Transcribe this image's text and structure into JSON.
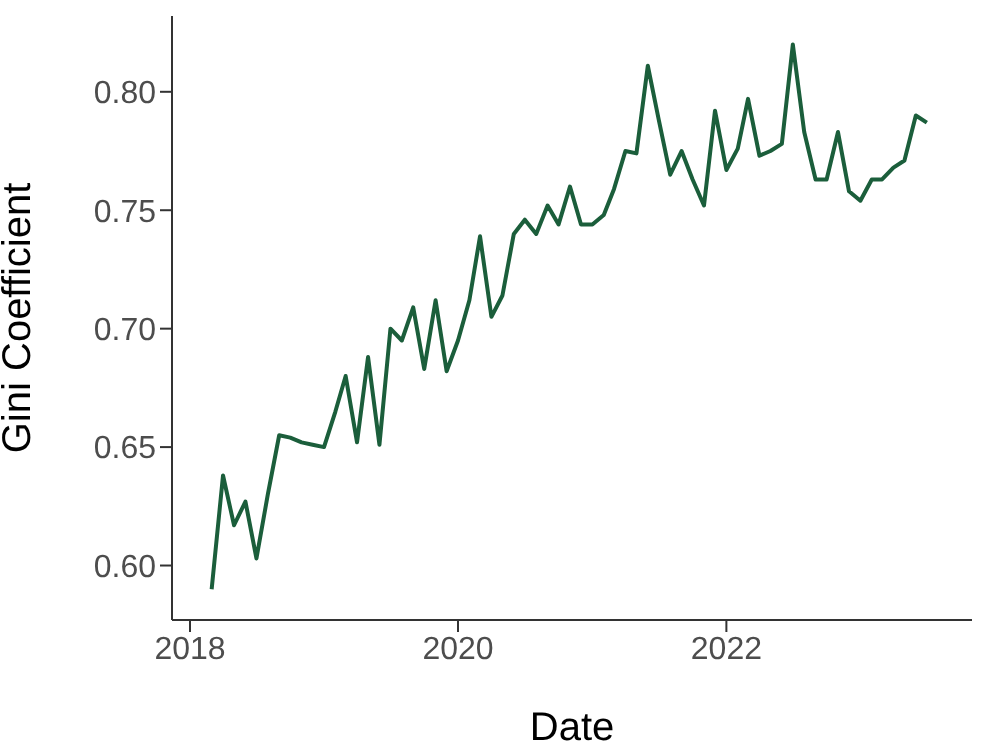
{
  "chart_data": {
    "type": "line",
    "xlabel": "Date",
    "ylabel": "Gini Coefficient",
    "x": [
      "2018-03",
      "2018-04",
      "2018-05",
      "2018-06",
      "2018-07",
      "2018-08",
      "2018-09",
      "2018-10",
      "2018-11",
      "2018-12",
      "2019-01",
      "2019-02",
      "2019-03",
      "2019-04",
      "2019-05",
      "2019-06",
      "2019-07",
      "2019-08",
      "2019-09",
      "2019-10",
      "2019-11",
      "2019-12",
      "2020-01",
      "2020-02",
      "2020-03",
      "2020-04",
      "2020-05",
      "2020-06",
      "2020-07",
      "2020-08",
      "2020-09",
      "2020-10",
      "2020-11",
      "2020-12",
      "2021-01",
      "2021-02",
      "2021-03",
      "2021-04",
      "2021-05",
      "2021-06",
      "2021-07",
      "2021-08",
      "2021-09",
      "2021-10",
      "2021-11",
      "2021-12",
      "2022-01",
      "2022-02",
      "2022-03",
      "2022-04",
      "2022-05",
      "2022-06",
      "2022-07",
      "2022-08",
      "2022-09",
      "2022-10",
      "2022-11",
      "2022-12",
      "2023-01",
      "2023-02",
      "2023-03",
      "2023-04",
      "2023-05",
      "2023-06",
      "2023-07"
    ],
    "series": [
      {
        "color": "#1b5e3b",
        "values": [
          0.59,
          0.638,
          0.617,
          0.627,
          0.603,
          0.63,
          0.655,
          0.654,
          0.652,
          0.651,
          0.65,
          0.665,
          0.68,
          0.652,
          0.688,
          0.651,
          0.7,
          0.695,
          0.709,
          0.683,
          0.712,
          0.682,
          0.695,
          0.712,
          0.739,
          0.705,
          0.714,
          0.74,
          0.746,
          0.74,
          0.752,
          0.744,
          0.76,
          0.744,
          0.744,
          0.748,
          0.759,
          0.775,
          0.774,
          0.811,
          0.788,
          0.765,
          0.775,
          0.763,
          0.752,
          0.792,
          0.767,
          0.776,
          0.797,
          0.773,
          0.775,
          0.778,
          0.82,
          0.783,
          0.763,
          0.763,
          0.783,
          0.758,
          0.754,
          0.763,
          0.763,
          0.768,
          0.771,
          0.79,
          0.787
        ]
      }
    ],
    "xlim": [
      "2017-11-13",
      "2023-11-01"
    ],
    "xticks": [
      {
        "value": "2018",
        "label": "2018"
      },
      {
        "value": "2020",
        "label": "2020"
      },
      {
        "value": "2022",
        "label": "2022"
      }
    ],
    "ylim": [
      0.577,
      0.832
    ],
    "yticks": [
      {
        "value": 0.6,
        "label": "0.60"
      },
      {
        "value": 0.65,
        "label": "0.65"
      },
      {
        "value": 0.7,
        "label": "0.70"
      },
      {
        "value": 0.75,
        "label": "0.75"
      },
      {
        "value": 0.8,
        "label": "0.80"
      }
    ],
    "grid": false,
    "legend": false
  }
}
